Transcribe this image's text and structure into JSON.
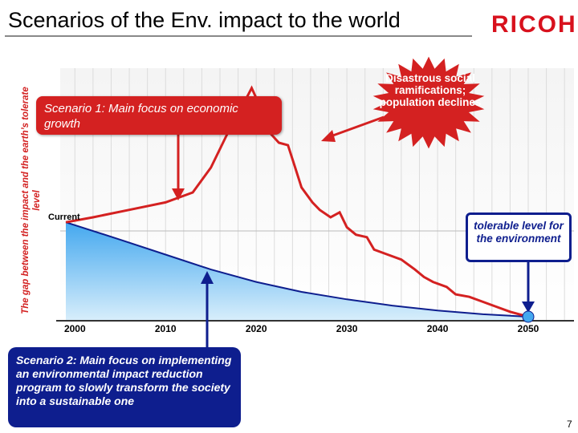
{
  "title": "Scenarios of the Env. impact to the world",
  "logo": "RICOH",
  "page_number": "7",
  "colors": {
    "red": "#d42121",
    "navy": "#0e1e8e",
    "area_top": "#44a8ef",
    "area_bottom": "#d8eefb"
  },
  "annotations": {
    "scenario1": "Scenario 1:  Main focus on economic growth",
    "scenario2": "Scenario 2: Main focus on implementing an environmental impact reduction program to slowly transform the society into a sustainable one",
    "disaster": "Disastrous social ramifications; population declines",
    "tolerable": "tolerable level for the environment",
    "current": "Current"
  },
  "chart_data": {
    "type": "line",
    "ylabel": "The gap between the impact and the earth’s tolerate level",
    "xlabel": "",
    "x_ticks": [
      2000,
      2010,
      2020,
      2030,
      2040,
      2050
    ],
    "xlim": [
      1999,
      2050
    ],
    "ylim": [
      0,
      100
    ],
    "grid": true,
    "series": [
      {
        "key": "scenario1",
        "points": [
          [
            1999,
            38
          ],
          [
            2002,
            40
          ],
          [
            2006,
            43
          ],
          [
            2010,
            46
          ],
          [
            2013,
            50
          ],
          [
            2015,
            60
          ],
          [
            2017,
            75
          ],
          [
            2018.5,
            85
          ],
          [
            2019.5,
            92
          ],
          [
            2020.5,
            84
          ],
          [
            2021.5,
            74
          ],
          [
            2022.5,
            70
          ],
          [
            2023.5,
            69
          ],
          [
            2024.3,
            60
          ],
          [
            2025,
            52
          ],
          [
            2026.2,
            46
          ],
          [
            2027,
            43
          ],
          [
            2028.2,
            40
          ],
          [
            2029.2,
            42
          ],
          [
            2030,
            36
          ],
          [
            2031,
            33
          ],
          [
            2032.2,
            32
          ],
          [
            2033,
            27
          ],
          [
            2034.5,
            25
          ],
          [
            2036,
            23
          ],
          [
            2037.5,
            19
          ],
          [
            2038.5,
            16
          ],
          [
            2039.5,
            14
          ],
          [
            2041,
            12
          ],
          [
            2042,
            9
          ],
          [
            2043.5,
            8
          ],
          [
            2045,
            6
          ],
          [
            2046.5,
            4
          ],
          [
            2048,
            2
          ],
          [
            2050,
            0
          ]
        ]
      },
      {
        "key": "scenario2",
        "points": [
          [
            1999,
            38
          ],
          [
            2005,
            31
          ],
          [
            2010,
            25
          ],
          [
            2015,
            19
          ],
          [
            2020,
            14
          ],
          [
            2025,
            10
          ],
          [
            2030,
            7
          ],
          [
            2035,
            4.5
          ],
          [
            2040,
            2.5
          ],
          [
            2045,
            1
          ],
          [
            2050,
            0
          ]
        ]
      }
    ]
  }
}
